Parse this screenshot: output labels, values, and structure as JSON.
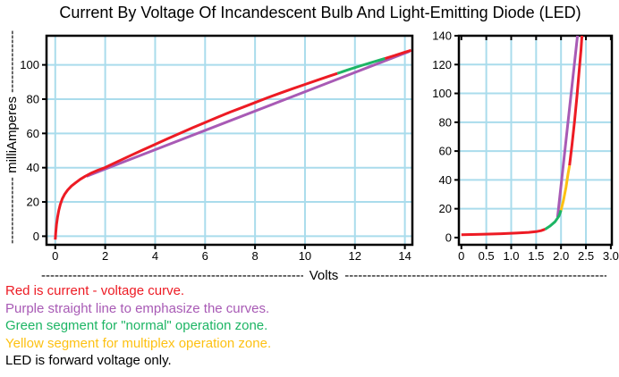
{
  "title": "Current By Voltage Of Incandescent Bulb And Light-Emitting Diode (LED)",
  "colors": {
    "red": "#ed1b24",
    "purple": "#a85ab5",
    "green": "#1db564",
    "yellow": "#fdc113",
    "black": "#000000",
    "grid": "#aadcec",
    "axis": "#000000"
  },
  "y_axis_label": {
    "dashes_lower": "---------------",
    "text": "milliAmperes",
    "dashes_upper": "--------------"
  },
  "x_axis_label": {
    "dashes_left": "------------------------------------------------------------",
    "text": "Volts",
    "dashes_right": "------------------------------------------------------------"
  },
  "legend": [
    {
      "text": "Red is current - voltage curve.",
      "color": "red"
    },
    {
      "text": "Purple straight line to emphasize the curves.",
      "color": "purple"
    },
    {
      "text": "Green segment for \"normal\" operation zone.",
      "color": "green"
    },
    {
      "text": "Yellow segment for multiplex operation zone.",
      "color": "yellow"
    },
    {
      "text": "LED is forward voltage only.",
      "color": "black"
    }
  ],
  "chart_data": [
    {
      "id": "bulb",
      "type": "line",
      "subject": "incandescent bulb current-voltage curve",
      "xlabel": "Volts",
      "ylabel": "milliAmperes",
      "xlim": [
        -0.35,
        14.3
      ],
      "ylim": [
        -5,
        117
      ],
      "xticks": [
        0,
        2,
        4,
        6,
        8,
        10,
        12,
        14
      ],
      "xtick_labels": [
        "0",
        "2",
        "4",
        "6",
        "8",
        "10",
        "12",
        "14"
      ],
      "yticks": [
        0,
        20,
        40,
        60,
        80,
        100
      ],
      "ytick_labels": [
        "0",
        "20",
        "40",
        "60",
        "80",
        "100"
      ],
      "grid_x": [
        0,
        2,
        4,
        6,
        8,
        10,
        12,
        14
      ],
      "grid_y": [
        0,
        20,
        40,
        60,
        80,
        100
      ],
      "ticks_top": false,
      "series": [
        {
          "name": "purple-reference-line",
          "color": "purple",
          "points": [
            [
              1.25,
              35
            ],
            [
              14.2,
              108
            ]
          ]
        },
        {
          "name": "red-iv-curve",
          "color": "red",
          "points": [
            [
              0,
              -2
            ],
            [
              0.02,
              2
            ],
            [
              0.05,
              7
            ],
            [
              0.09,
              11
            ],
            [
              0.14,
              15
            ],
            [
              0.2,
              18.5
            ],
            [
              0.28,
              21.8
            ],
            [
              0.38,
              24.6
            ],
            [
              0.5,
              27
            ],
            [
              0.65,
              29.3
            ],
            [
              0.82,
              31.3
            ],
            [
              1.0,
              33.2
            ],
            [
              1.2,
              35
            ],
            [
              1.45,
              36.9
            ],
            [
              1.7,
              38.5
            ],
            [
              2,
              40.1
            ],
            [
              2.5,
              43.6
            ],
            [
              3,
              47
            ],
            [
              3.5,
              50.3
            ],
            [
              4,
              53.6
            ],
            [
              4.5,
              56.9
            ],
            [
              5,
              60.1
            ],
            [
              5.5,
              63.3
            ],
            [
              6,
              66.4
            ],
            [
              6.5,
              69.4
            ],
            [
              7,
              72.4
            ],
            [
              7.5,
              75.2
            ],
            [
              8,
              78
            ],
            [
              8.5,
              80.8
            ],
            [
              9,
              83.5
            ],
            [
              9.5,
              86.1
            ],
            [
              10,
              88.6
            ],
            [
              10.5,
              91.1
            ],
            [
              11,
              93.6
            ],
            [
              11.3,
              95
            ]
          ]
        },
        {
          "name": "green-normal-zone",
          "color": "green",
          "points": [
            [
              11.3,
              95
            ],
            [
              11.8,
              97.5
            ],
            [
              12.3,
              99.8
            ],
            [
              12.8,
              102
            ],
            [
              13.2,
              103.7
            ]
          ]
        },
        {
          "name": "red-iv-curve-end",
          "color": "red",
          "points": [
            [
              13.2,
              103.7
            ],
            [
              13.6,
              105.5
            ],
            [
              14,
              107.4
            ],
            [
              14.25,
              108.5
            ]
          ]
        }
      ]
    },
    {
      "id": "led",
      "type": "line",
      "subject": "LED forward current-voltage curve",
      "xlabel": "Volts",
      "ylabel": "milliAmperes",
      "xlim": [
        -0.05,
        3.02
      ],
      "ylim": [
        -5,
        140
      ],
      "xticks": [
        0,
        0.5,
        1,
        1.5,
        2,
        2.5,
        3
      ],
      "xtick_labels": [
        "0",
        "0.5",
        "1.0",
        "1.5",
        "2.0",
        "2.5",
        "3.0"
      ],
      "yticks": [
        0,
        20,
        40,
        60,
        80,
        100,
        120,
        140
      ],
      "ytick_labels": [
        "0",
        "20",
        "40",
        "60",
        "80",
        "100",
        "120",
        "140"
      ],
      "grid_x": [
        0.5,
        1,
        1.5,
        2,
        2.5
      ],
      "grid_y": [
        20,
        40,
        60,
        80,
        100,
        120
      ],
      "ticks_top": true,
      "series": [
        {
          "name": "purple-reference-line",
          "color": "purple",
          "points": [
            [
              1.93,
              14
            ],
            [
              2.33,
              140
            ]
          ]
        },
        {
          "name": "red-iv-curve-low",
          "color": "red",
          "points": [
            [
              0,
              2
            ],
            [
              0.4,
              2.3
            ],
            [
              0.8,
              2.7
            ],
            [
              1.1,
              3.1
            ],
            [
              1.35,
              3.6
            ],
            [
              1.5,
              4.1
            ],
            [
              1.6,
              4.8
            ],
            [
              1.68,
              5.8
            ]
          ]
        },
        {
          "name": "green-normal-zone",
          "color": "green",
          "points": [
            [
              1.68,
              5.8
            ],
            [
              1.78,
              8
            ],
            [
              1.88,
              11
            ],
            [
              1.96,
              15
            ],
            [
              2.0,
              19
            ]
          ]
        },
        {
          "name": "yellow-multiplex-zone",
          "color": "yellow",
          "points": [
            [
              2.0,
              19
            ],
            [
              2.05,
              26
            ],
            [
              2.1,
              35
            ],
            [
              2.14,
              44
            ],
            [
              2.17,
              50
            ]
          ]
        },
        {
          "name": "red-iv-curve-high",
          "color": "red",
          "points": [
            [
              2.17,
              50
            ],
            [
              2.22,
              64
            ],
            [
              2.27,
              80
            ],
            [
              2.32,
              98
            ],
            [
              2.37,
              118
            ],
            [
              2.4,
              130
            ],
            [
              2.42,
              140
            ]
          ]
        }
      ]
    }
  ]
}
